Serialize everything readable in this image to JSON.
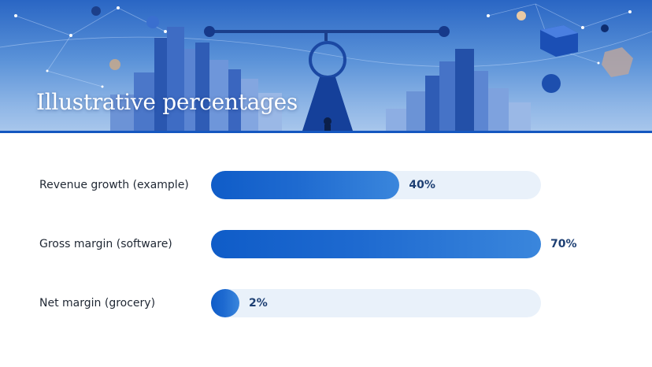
{
  "header": {
    "title": "Illustrative percentages"
  },
  "chart_data": {
    "type": "bar",
    "orientation": "horizontal",
    "categories": [
      "Revenue growth (example)",
      "Gross margin (software)",
      "Net margin (grocery)"
    ],
    "values": [
      40,
      70,
      2
    ],
    "value_labels": [
      "40%",
      "70%",
      "2%"
    ],
    "xlim": [
      0,
      70
    ],
    "grid": false,
    "colors": {
      "bar": "#1a63cc",
      "track": "#e9f1fa",
      "value_text": "#1d3f73"
    }
  },
  "icons": [
    "cityscape-banner-illustration",
    "balance-scale-icon"
  ]
}
